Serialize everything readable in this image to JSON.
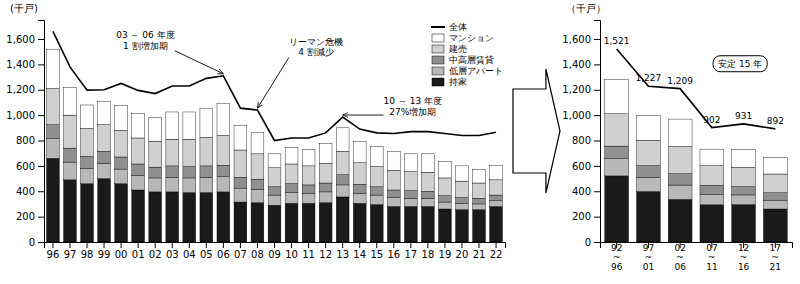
{
  "chart_data": [
    {
      "type": "bar",
      "stacked": true,
      "grid": false,
      "legend": "upper right",
      "ylabel": "(千戸)",
      "categories": [
        "96",
        "97",
        "98",
        "99",
        "00",
        "01",
        "02",
        "03",
        "04",
        "05",
        "06",
        "07",
        "08",
        "09",
        "10",
        "11",
        "12",
        "13",
        "14",
        "15",
        "16",
        "17",
        "18",
        "19",
        "20",
        "21",
        "22"
      ],
      "series": [
        {
          "name": "全体",
          "type": "line",
          "color": "black",
          "values": [
            1660,
            1380,
            1197,
            1200,
            1250,
            1195,
            1170,
            1230,
            1230,
            1290,
            1310,
            1055,
            1040,
            800,
            820,
            820,
            860,
            985,
            890,
            860,
            855,
            870,
            870,
            855,
            840,
            840,
            865
          ]
        },
        {
          "name": "マンション",
          "type": "bar",
          "color": "#ffffff",
          "values": [
            310,
            220,
            185,
            185,
            195,
            195,
            185,
            215,
            215,
            230,
            250,
            195,
            170,
            110,
            130,
            130,
            155,
            185,
            165,
            160,
            150,
            140,
            145,
            130,
            120,
            105,
            115
          ]
        },
        {
          "name": "建売",
          "type": "bar",
          "color": "#d0d0d0",
          "values": [
            285,
            260,
            220,
            210,
            210,
            205,
            205,
            210,
            215,
            225,
            235,
            215,
            200,
            150,
            155,
            150,
            155,
            185,
            170,
            160,
            155,
            150,
            150,
            140,
            130,
            120,
            120
          ]
        },
        {
          "name": "中高層賃貸",
          "type": "bar",
          "color": "#909090",
          "values": [
            110,
            110,
            95,
            95,
            95,
            90,
            85,
            90,
            90,
            90,
            90,
            85,
            80,
            65,
            70,
            65,
            70,
            80,
            70,
            65,
            60,
            60,
            55,
            50,
            45,
            45,
            45
          ]
        },
        {
          "name": "低層アパート",
          "type": "bar",
          "color": "#b8b8b8",
          "values": [
            155,
            140,
            120,
            120,
            115,
            115,
            110,
            115,
            115,
            120,
            120,
            110,
            105,
            80,
            85,
            80,
            85,
            95,
            80,
            75,
            70,
            65,
            65,
            55,
            50,
            45,
            45
          ]
        },
        {
          "name": "持家",
          "type": "bar",
          "color": "#1a1a1a",
          "values": [
            660,
            490,
            460,
            500,
            460,
            410,
            395,
            395,
            390,
            390,
            395,
            315,
            310,
            290,
            305,
            305,
            310,
            355,
            305,
            295,
            280,
            280,
            280,
            260,
            255,
            255,
            280
          ]
        }
      ],
      "ylim": [
        0,
        1750
      ],
      "yticks": [
        0,
        200,
        400,
        600,
        800,
        {
          "value": 1000,
          "label": "1,000"
        },
        {
          "value": 1200,
          "label": "1,200"
        },
        {
          "value": 1400,
          "label": "1,400"
        },
        {
          "value": 1600,
          "label": "1,600"
        }
      ],
      "annotations": [
        {
          "text": "03 ～ 06 年度\n1 割増加期",
          "category": "06"
        },
        {
          "text": "リーマン危機\n4 割減少",
          "category": "08"
        },
        {
          "text": "10 ～ 13 年度\n27%増加期",
          "category": "13"
        }
      ]
    },
    {
      "type": "bar",
      "stacked": true,
      "grid": false,
      "ylabel": "（千戸）",
      "categories": [
        "92\n~\n96",
        "97\n~\n01",
        "02\n~\n06",
        "07\n~\n11",
        "12\n~\n16",
        "17\n~\n21"
      ],
      "series": [
        {
          "type": "line",
          "color": "black",
          "values": [
            1521,
            1227,
            1209,
            902,
            931,
            892
          ],
          "value_labels": [
            "1,521",
            "1,227",
            "1,209",
            "902",
            "931",
            "892"
          ],
          "data_labels": true
        },
        {
          "type": "bar",
          "color": "#ffffff",
          "values": [
            270,
            195,
            216,
            130,
            143,
            128
          ]
        },
        {
          "type": "bar",
          "color": "#d0d0d0",
          "values": [
            255,
            200,
            215,
            155,
            152,
            148
          ]
        },
        {
          "type": "bar",
          "color": "#909090",
          "values": [
            100,
            92,
            89,
            72,
            65,
            58
          ]
        },
        {
          "type": "bar",
          "color": "#b8b8b8",
          "values": [
            135,
            112,
            113,
            82,
            76,
            70
          ]
        },
        {
          "type": "bar",
          "color": "#1a1a1a",
          "values": [
            521,
            398,
            336,
            293,
            295,
            260
          ]
        }
      ],
      "ylim": [
        0,
        1750
      ],
      "yticks": [
        0,
        200,
        400,
        600,
        800,
        {
          "value": 1000,
          "label": "1,000"
        },
        {
          "value": 1200,
          "label": "1,200"
        },
        {
          "value": 1400,
          "label": "1,400"
        },
        {
          "value": 1600,
          "label": "1,600"
        }
      ],
      "annotations": [
        {
          "text": "安定 15 年"
        }
      ]
    }
  ]
}
